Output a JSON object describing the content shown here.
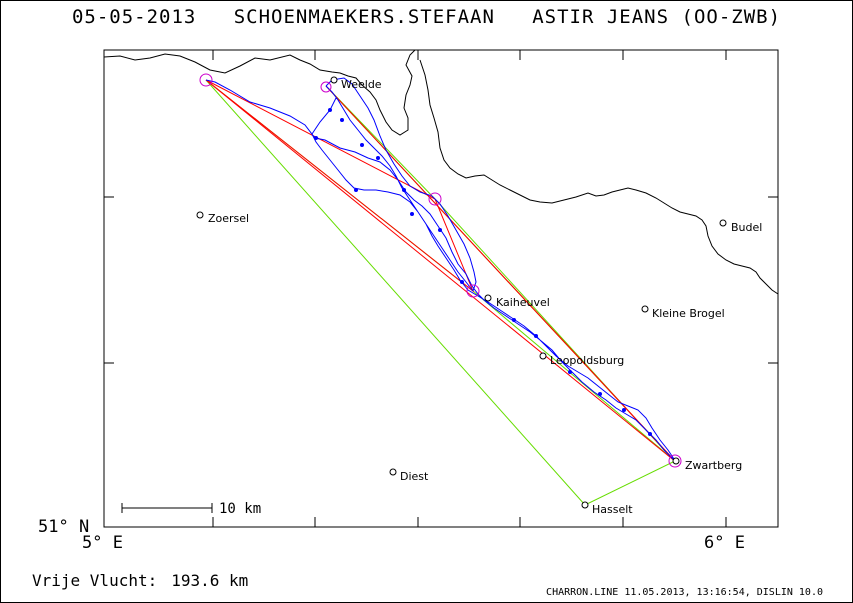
{
  "title": {
    "date": "05-05-2013",
    "pilot": "SCHOENMAEKERS.STEFAAN",
    "glider": "ASTIR JEANS (OO-ZWB)"
  },
  "axes": {
    "lat_label": "51° N",
    "lon_left_label": "5° E",
    "lon_right_label": "6° E"
  },
  "places": [
    {
      "name": "Weelde"
    },
    {
      "name": "Zoersel"
    },
    {
      "name": "Budel"
    },
    {
      "name": "Kaiheuvel"
    },
    {
      "name": "Kleine Brogel"
    },
    {
      "name": "Leopoldsburg"
    },
    {
      "name": "Diest"
    },
    {
      "name": "Hasselt"
    },
    {
      "name": "Zwartberg"
    }
  ],
  "scale_bar": {
    "label": "10 km"
  },
  "distance": {
    "label": "Vrije Vlucht:",
    "value": "193.6 km"
  },
  "footer": "CHARRON.LINE 11.05.2013, 13:16:54, DISLIN 10.0",
  "colors": {
    "track": "#0000ff",
    "task_legs": "#ff0000",
    "optimized_legs": "#66dd00",
    "turnpoint_circles": "#cc00cc",
    "land": "#000000"
  }
}
